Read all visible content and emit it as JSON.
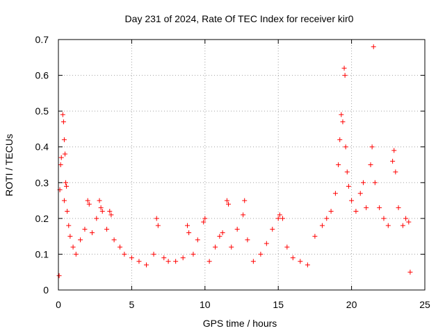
{
  "chart_data": {
    "type": "scatter",
    "title": "Day 231 of 2024, Rate Of TEC Index for receiver kir0",
    "xlabel": "GPS time / hours",
    "ylabel": "ROTI / TECUs",
    "xlim": [
      0,
      25
    ],
    "ylim": [
      0,
      0.7
    ],
    "xticks": [
      "0",
      "5",
      "10",
      "15",
      "20",
      "25"
    ],
    "yticks": [
      "0",
      "0.1",
      "0.2",
      "0.3",
      "0.4",
      "0.5",
      "0.6",
      "0.7"
    ],
    "grid": true,
    "marker": "plus",
    "color": "#ff0000",
    "series": [
      {
        "name": "ROTI",
        "points": [
          [
            0.05,
            0.04
          ],
          [
            0.1,
            0.28
          ],
          [
            0.15,
            0.35
          ],
          [
            0.2,
            0.37
          ],
          [
            0.3,
            0.49
          ],
          [
            0.35,
            0.47
          ],
          [
            0.4,
            0.42
          ],
          [
            0.45,
            0.38
          ],
          [
            0.5,
            0.3
          ],
          [
            0.55,
            0.29
          ],
          [
            0.4,
            0.25
          ],
          [
            0.6,
            0.22
          ],
          [
            0.7,
            0.18
          ],
          [
            0.8,
            0.15
          ],
          [
            1.0,
            0.12
          ],
          [
            1.2,
            0.1
          ],
          [
            1.5,
            0.14
          ],
          [
            1.8,
            0.17
          ],
          [
            2.0,
            0.25
          ],
          [
            2.1,
            0.24
          ],
          [
            2.3,
            0.16
          ],
          [
            2.6,
            0.2
          ],
          [
            2.8,
            0.25
          ],
          [
            2.9,
            0.23
          ],
          [
            3.0,
            0.22
          ],
          [
            3.3,
            0.17
          ],
          [
            3.5,
            0.22
          ],
          [
            3.6,
            0.21
          ],
          [
            3.8,
            0.14
          ],
          [
            4.2,
            0.12
          ],
          [
            4.5,
            0.1
          ],
          [
            5.0,
            0.09
          ],
          [
            5.5,
            0.08
          ],
          [
            6.0,
            0.07
          ],
          [
            6.5,
            0.1
          ],
          [
            6.7,
            0.2
          ],
          [
            6.8,
            0.18
          ],
          [
            7.2,
            0.09
          ],
          [
            7.5,
            0.08
          ],
          [
            8.0,
            0.08
          ],
          [
            8.5,
            0.09
          ],
          [
            8.8,
            0.18
          ],
          [
            8.9,
            0.16
          ],
          [
            9.2,
            0.1
          ],
          [
            9.5,
            0.14
          ],
          [
            9.9,
            0.19
          ],
          [
            10.0,
            0.2
          ],
          [
            10.3,
            0.08
          ],
          [
            10.7,
            0.12
          ],
          [
            11.0,
            0.15
          ],
          [
            11.2,
            0.16
          ],
          [
            11.5,
            0.25
          ],
          [
            11.6,
            0.24
          ],
          [
            11.8,
            0.12
          ],
          [
            12.2,
            0.17
          ],
          [
            12.6,
            0.21
          ],
          [
            12.7,
            0.25
          ],
          [
            12.9,
            0.14
          ],
          [
            13.3,
            0.08
          ],
          [
            13.8,
            0.1
          ],
          [
            14.2,
            0.13
          ],
          [
            14.6,
            0.17
          ],
          [
            15.0,
            0.2
          ],
          [
            15.1,
            0.21
          ],
          [
            15.3,
            0.2
          ],
          [
            15.6,
            0.12
          ],
          [
            16.0,
            0.09
          ],
          [
            16.5,
            0.08
          ],
          [
            17.0,
            0.07
          ],
          [
            17.5,
            0.15
          ],
          [
            18.0,
            0.18
          ],
          [
            18.3,
            0.2
          ],
          [
            18.6,
            0.22
          ],
          [
            18.9,
            0.27
          ],
          [
            19.1,
            0.35
          ],
          [
            19.2,
            0.42
          ],
          [
            19.3,
            0.49
          ],
          [
            19.4,
            0.47
          ],
          [
            19.5,
            0.62
          ],
          [
            19.55,
            0.6
          ],
          [
            19.6,
            0.4
          ],
          [
            19.7,
            0.33
          ],
          [
            19.8,
            0.29
          ],
          [
            20.0,
            0.25
          ],
          [
            20.3,
            0.22
          ],
          [
            20.6,
            0.27
          ],
          [
            20.8,
            0.3
          ],
          [
            21.0,
            0.23
          ],
          [
            21.3,
            0.35
          ],
          [
            21.4,
            0.4
          ],
          [
            21.5,
            0.68
          ],
          [
            21.6,
            0.3
          ],
          [
            21.9,
            0.23
          ],
          [
            22.2,
            0.2
          ],
          [
            22.5,
            0.18
          ],
          [
            22.8,
            0.36
          ],
          [
            22.9,
            0.39
          ],
          [
            23.0,
            0.33
          ],
          [
            23.2,
            0.23
          ],
          [
            23.5,
            0.18
          ],
          [
            23.7,
            0.2
          ],
          [
            23.9,
            0.19
          ],
          [
            24.0,
            0.05
          ]
        ]
      }
    ]
  }
}
